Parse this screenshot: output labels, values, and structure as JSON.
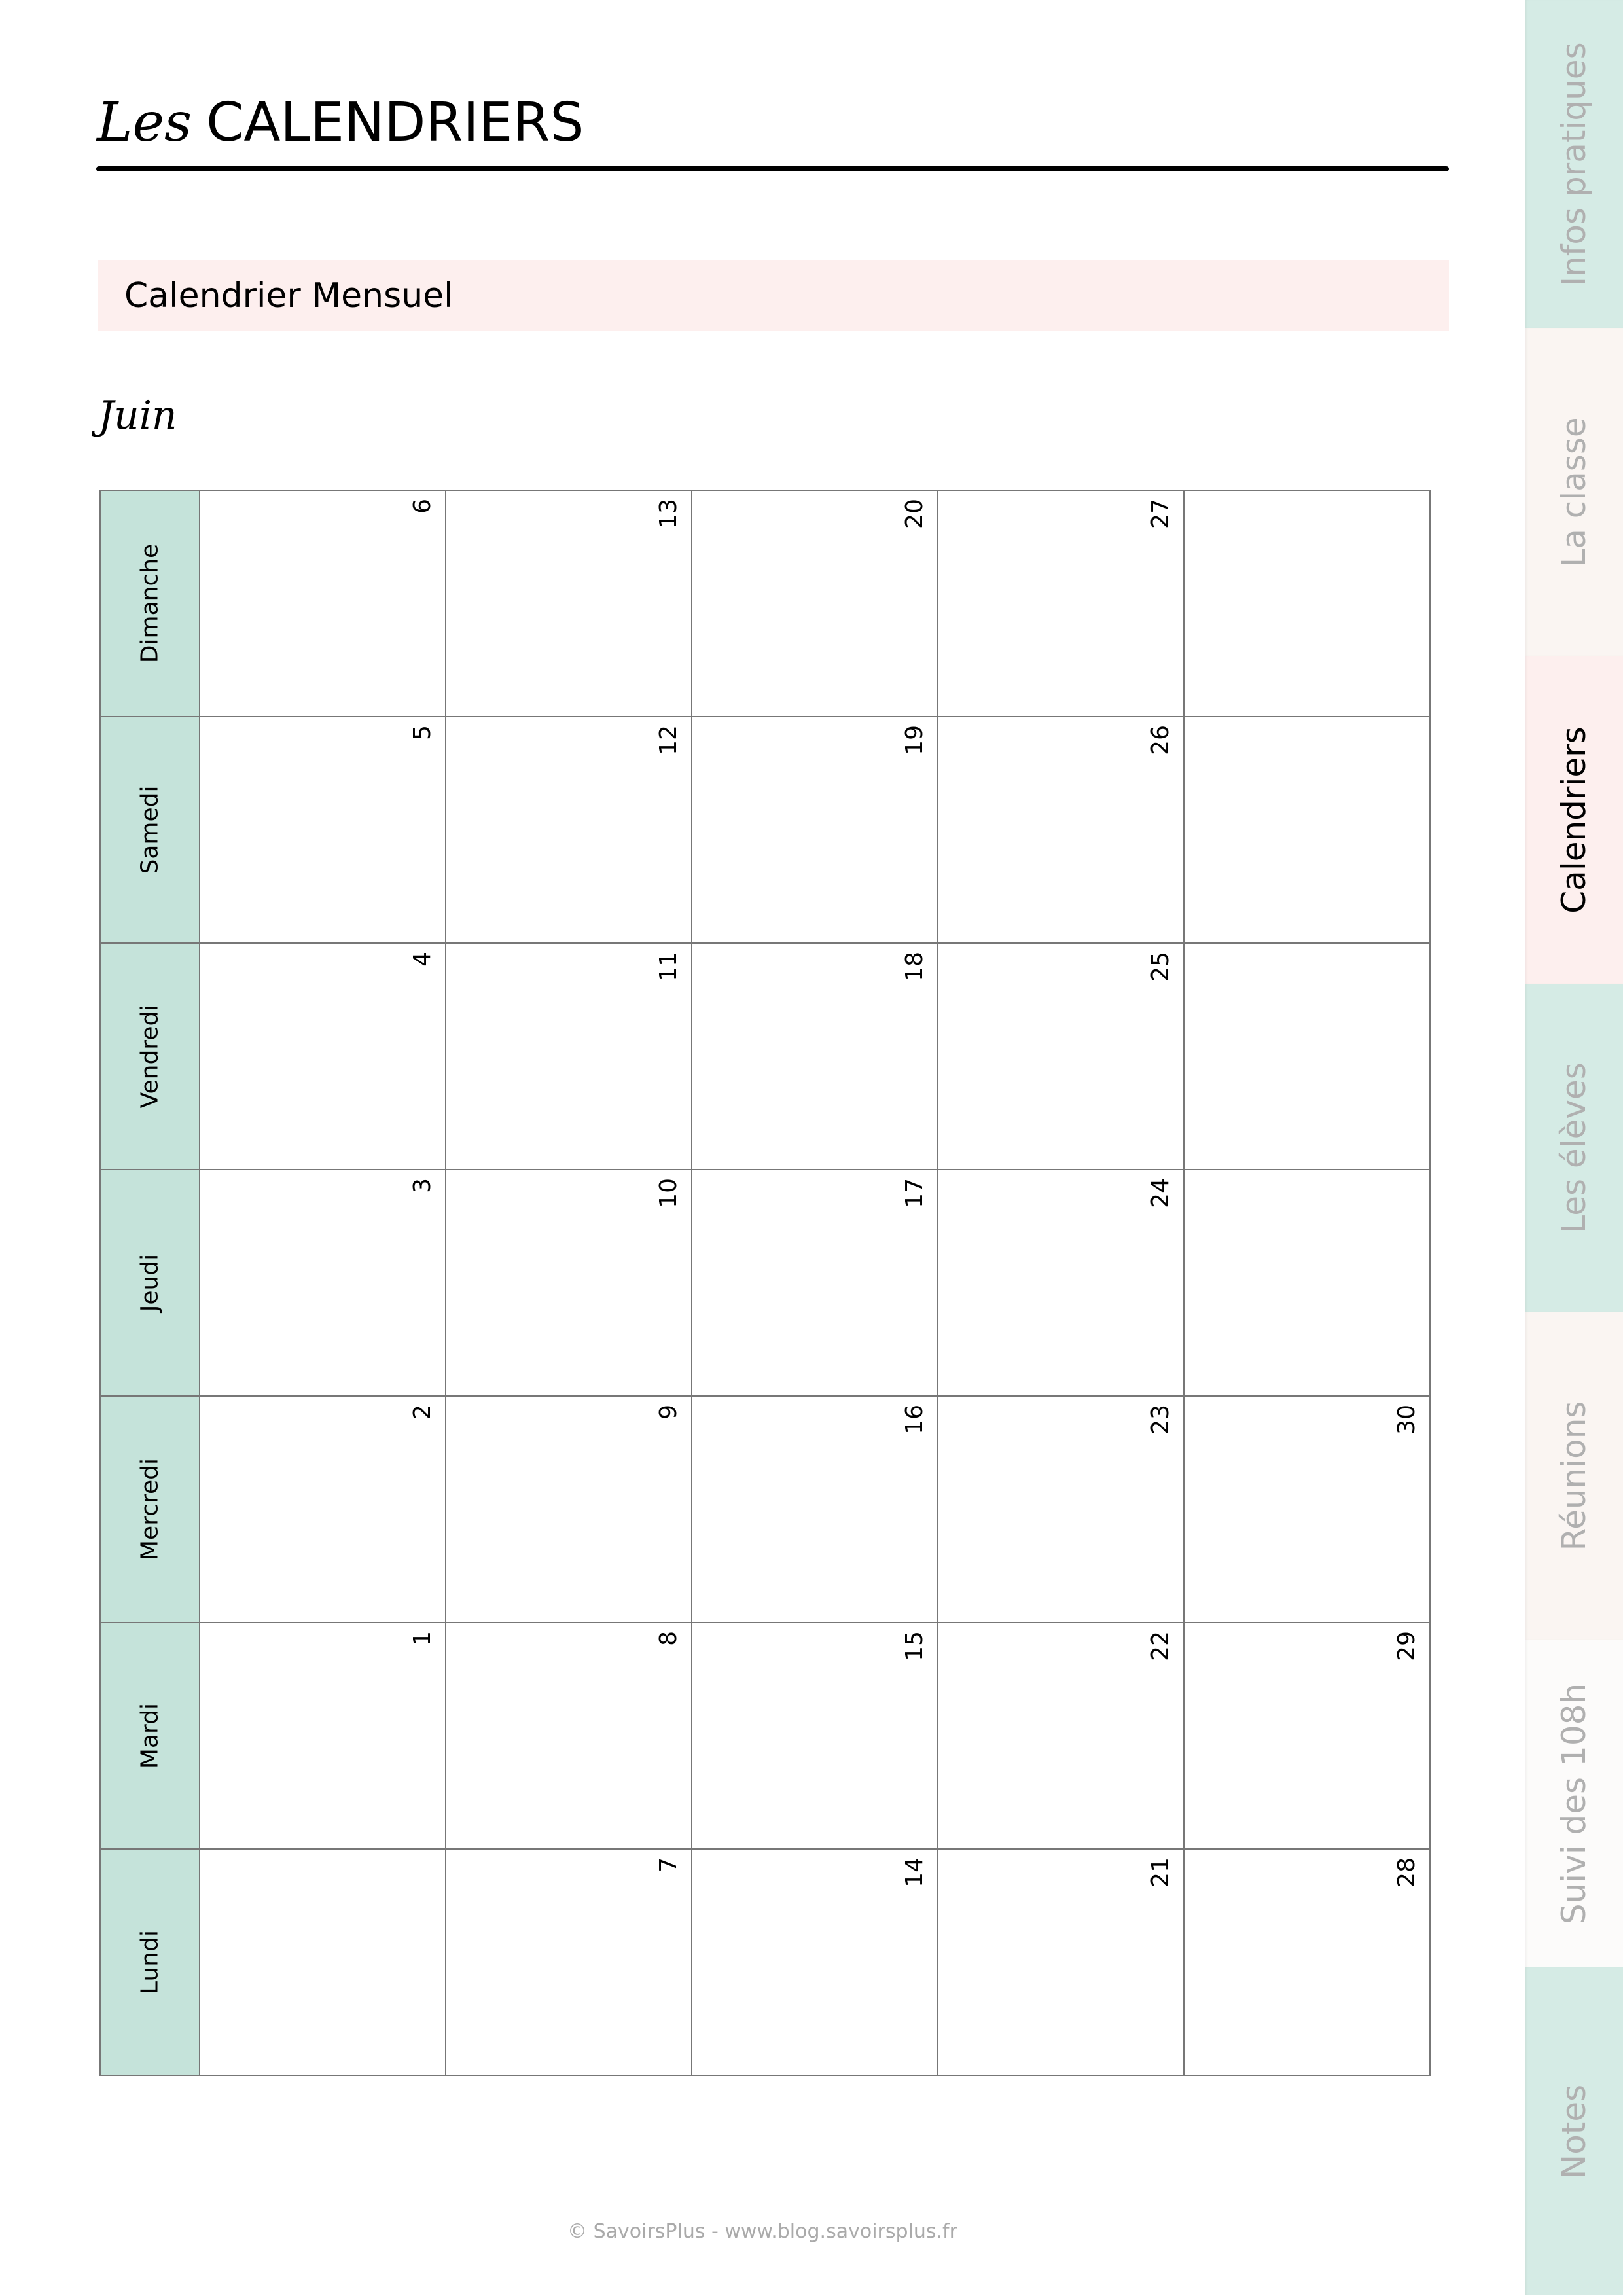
{
  "header": {
    "title_prefix": "Les",
    "title_main": "CALENDRIERS"
  },
  "section": {
    "label": "Calendrier Mensuel"
  },
  "month": "Juin",
  "calendar": {
    "rows": [
      {
        "day": "Dimanche",
        "cells": [
          "6",
          "13",
          "20",
          "27",
          ""
        ]
      },
      {
        "day": "Samedi",
        "cells": [
          "5",
          "12",
          "19",
          "26",
          ""
        ]
      },
      {
        "day": "Vendredi",
        "cells": [
          "4",
          "11",
          "18",
          "25",
          ""
        ]
      },
      {
        "day": "Jeudi",
        "cells": [
          "3",
          "10",
          "17",
          "24",
          ""
        ]
      },
      {
        "day": "Mercredi",
        "cells": [
          "2",
          "9",
          "16",
          "23",
          "30"
        ]
      },
      {
        "day": "Mardi",
        "cells": [
          "1",
          "8",
          "15",
          "22",
          "29"
        ]
      },
      {
        "day": "Lundi",
        "cells": [
          "",
          "7",
          "14",
          "21",
          "28"
        ]
      }
    ],
    "header_color": "#c5e3da"
  },
  "tabs": [
    {
      "label": "Infos pratiques",
      "color": "#d5ebe5",
      "active": false
    },
    {
      "label": "La classe",
      "color": "#faf5f2",
      "active": false
    },
    {
      "label": "Calendriers",
      "color": "#fdefee",
      "active": true
    },
    {
      "label": "Les élèves",
      "color": "#d5ebe5",
      "active": false
    },
    {
      "label": "Réunions",
      "color": "#faf5f2",
      "active": false
    },
    {
      "label": "Suivi des 108h",
      "color": "#fcfbfa",
      "active": false
    },
    {
      "label": "Notes",
      "color": "#d5ebe5",
      "active": false
    }
  ],
  "footer": "© SavoirsPlus - www.blog.savoirsplus.fr"
}
